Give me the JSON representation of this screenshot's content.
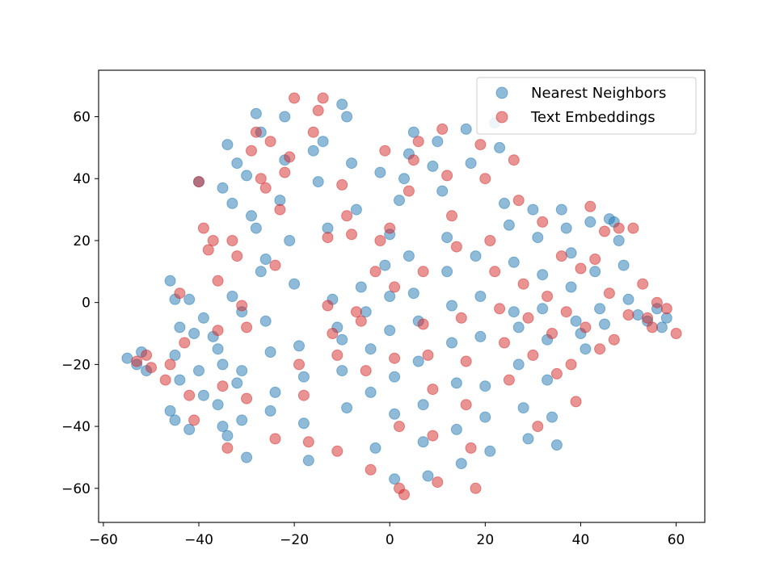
{
  "chart_data": {
    "type": "scatter",
    "title": "",
    "xlabel": "",
    "ylabel": "",
    "xlim": [
      -61,
      66
    ],
    "ylim": [
      -71,
      75
    ],
    "xticks": [
      -60,
      -40,
      -20,
      0,
      20,
      40,
      60
    ],
    "yticks": [
      -60,
      -40,
      -20,
      0,
      20,
      40,
      60
    ],
    "xtick_labels": [
      "−60",
      "−40",
      "−20",
      "0",
      "20",
      "40",
      "60"
    ],
    "ytick_labels": [
      "−60",
      "−40",
      "−20",
      "0",
      "20",
      "40",
      "60"
    ],
    "grid": false,
    "legend_position": "top-right",
    "series": [
      {
        "name": "Nearest Neighbors",
        "color": "#1f77b4",
        "alpha": 0.5,
        "points": [
          [
            -55,
            -18
          ],
          [
            -53,
            -20
          ],
          [
            -52,
            -16
          ],
          [
            -51,
            -22
          ],
          [
            -46,
            7
          ],
          [
            -45,
            1
          ],
          [
            -44,
            -8
          ],
          [
            -45,
            -17
          ],
          [
            -44,
            -25
          ],
          [
            -46,
            -35
          ],
          [
            -45,
            -38
          ],
          [
            -42,
            1
          ],
          [
            -41,
            -10
          ],
          [
            -40,
            -22
          ],
          [
            -39,
            -30
          ],
          [
            -42,
            -41
          ],
          [
            -40,
            39
          ],
          [
            -39,
            -5
          ],
          [
            -37,
            -11
          ],
          [
            -36,
            -15
          ],
          [
            -35,
            -20
          ],
          [
            -36,
            -33
          ],
          [
            -35,
            -40
          ],
          [
            -34,
            -43
          ],
          [
            -34,
            51
          ],
          [
            -35,
            37
          ],
          [
            -33,
            32
          ],
          [
            -32,
            45
          ],
          [
            -33,
            2
          ],
          [
            -31,
            -3
          ],
          [
            -31,
            -22
          ],
          [
            -32,
            -26
          ],
          [
            -31,
            -38
          ],
          [
            -30,
            -50
          ],
          [
            -30,
            41
          ],
          [
            -29,
            28
          ],
          [
            -28,
            24
          ],
          [
            -28,
            61
          ],
          [
            -27,
            55
          ],
          [
            -27,
            10
          ],
          [
            -26,
            14
          ],
          [
            -26,
            -6
          ],
          [
            -25,
            -16
          ],
          [
            -24,
            -29
          ],
          [
            -25,
            -35
          ],
          [
            -23,
            33
          ],
          [
            -22,
            46
          ],
          [
            -22,
            60
          ],
          [
            -21,
            20
          ],
          [
            -20,
            6
          ],
          [
            -19,
            -14
          ],
          [
            -18,
            -24
          ],
          [
            -18,
            -39
          ],
          [
            -17,
            -51
          ],
          [
            -16,
            49
          ],
          [
            -15,
            39
          ],
          [
            -14,
            52
          ],
          [
            -13,
            24
          ],
          [
            -12,
            1
          ],
          [
            -11,
            -8
          ],
          [
            -10,
            -12
          ],
          [
            -10,
            -22
          ],
          [
            -9,
            -34
          ],
          [
            -9,
            60
          ],
          [
            -10,
            64
          ],
          [
            -8,
            45
          ],
          [
            -7,
            30
          ],
          [
            -6,
            5
          ],
          [
            -5,
            -3
          ],
          [
            -4,
            -15
          ],
          [
            -4,
            -29
          ],
          [
            -3,
            -47
          ],
          [
            -2,
            42
          ],
          [
            -1,
            12
          ],
          [
            0,
            22
          ],
          [
            0,
            2
          ],
          [
            0,
            -9
          ],
          [
            1,
            -24
          ],
          [
            1,
            -36
          ],
          [
            1,
            -57
          ],
          [
            2,
            33
          ],
          [
            3,
            40
          ],
          [
            4,
            48
          ],
          [
            5,
            55
          ],
          [
            4,
            15
          ],
          [
            5,
            3
          ],
          [
            6,
            -6
          ],
          [
            6,
            -19
          ],
          [
            7,
            -33
          ],
          [
            7,
            -45
          ],
          [
            8,
            -56
          ],
          [
            9,
            44
          ],
          [
            10,
            52
          ],
          [
            11,
            36
          ],
          [
            12,
            21
          ],
          [
            12,
            10
          ],
          [
            13,
            -1
          ],
          [
            13,
            -13
          ],
          [
            14,
            -26
          ],
          [
            14,
            -41
          ],
          [
            15,
            -52
          ],
          [
            16,
            56
          ],
          [
            17,
            45
          ],
          [
            18,
            15
          ],
          [
            19,
            2
          ],
          [
            19,
            -11
          ],
          [
            20,
            -27
          ],
          [
            20,
            -37
          ],
          [
            21,
            -48
          ],
          [
            22,
            58
          ],
          [
            23,
            50
          ],
          [
            24,
            32
          ],
          [
            25,
            25
          ],
          [
            26,
            13
          ],
          [
            26,
            -3
          ],
          [
            27,
            -8
          ],
          [
            27,
            -20
          ],
          [
            28,
            -34
          ],
          [
            29,
            -44
          ],
          [
            30,
            30
          ],
          [
            31,
            21
          ],
          [
            32,
            9
          ],
          [
            32,
            -2
          ],
          [
            33,
            -12
          ],
          [
            33,
            -25
          ],
          [
            34,
            -37
          ],
          [
            35,
            -46
          ],
          [
            36,
            30
          ],
          [
            37,
            24
          ],
          [
            38,
            16
          ],
          [
            38,
            5
          ],
          [
            39,
            -6
          ],
          [
            40,
            -10
          ],
          [
            41,
            -15
          ],
          [
            42,
            26
          ],
          [
            43,
            10
          ],
          [
            44,
            -2
          ],
          [
            45,
            -7
          ],
          [
            46,
            27
          ],
          [
            47,
            26
          ],
          [
            48,
            20
          ],
          [
            49,
            12
          ],
          [
            50,
            1
          ],
          [
            52,
            -4
          ],
          [
            54,
            -6
          ],
          [
            56,
            -2
          ],
          [
            57,
            -8
          ],
          [
            58,
            -5
          ]
        ]
      },
      {
        "name": "Text Embeddings",
        "color": "#d62728",
        "alpha": 0.5,
        "points": [
          [
            -53,
            -19
          ],
          [
            -51,
            -17
          ],
          [
            -50,
            -21
          ],
          [
            -47,
            -25
          ],
          [
            -46,
            -20
          ],
          [
            -44,
            3
          ],
          [
            -43,
            -13
          ],
          [
            -42,
            -30
          ],
          [
            -41,
            -38
          ],
          [
            -40,
            39
          ],
          [
            -39,
            24
          ],
          [
            -38,
            17
          ],
          [
            -37,
            20
          ],
          [
            -36,
            7
          ],
          [
            -36,
            -9
          ],
          [
            -35,
            -27
          ],
          [
            -34,
            -47
          ],
          [
            -33,
            20
          ],
          [
            -32,
            15
          ],
          [
            -31,
            -1
          ],
          [
            -30,
            -8
          ],
          [
            -30,
            -31
          ],
          [
            -29,
            49
          ],
          [
            -28,
            55
          ],
          [
            -27,
            40
          ],
          [
            -26,
            37
          ],
          [
            -25,
            52
          ],
          [
            -24,
            12
          ],
          [
            -24,
            -44
          ],
          [
            -23,
            30
          ],
          [
            -22,
            42
          ],
          [
            -21,
            47
          ],
          [
            -20,
            66
          ],
          [
            -19,
            -20
          ],
          [
            -18,
            -30
          ],
          [
            -17,
            -45
          ],
          [
            -16,
            55
          ],
          [
            -15,
            62
          ],
          [
            -14,
            66
          ],
          [
            -13,
            21
          ],
          [
            -13,
            -1
          ],
          [
            -12,
            -10
          ],
          [
            -11,
            -17
          ],
          [
            -11,
            -48
          ],
          [
            -10,
            38
          ],
          [
            -9,
            28
          ],
          [
            -8,
            22
          ],
          [
            -7,
            -3
          ],
          [
            -6,
            -6
          ],
          [
            -5,
            -22
          ],
          [
            -4,
            -54
          ],
          [
            -3,
            10
          ],
          [
            -2,
            20
          ],
          [
            -1,
            49
          ],
          [
            0,
            24
          ],
          [
            1,
            5
          ],
          [
            1,
            -18
          ],
          [
            2,
            -40
          ],
          [
            2,
            -60
          ],
          [
            3,
            -62
          ],
          [
            4,
            36
          ],
          [
            5,
            46
          ],
          [
            6,
            52
          ],
          [
            7,
            10
          ],
          [
            7,
            -7
          ],
          [
            8,
            -17
          ],
          [
            9,
            -28
          ],
          [
            9,
            -43
          ],
          [
            10,
            -58
          ],
          [
            11,
            56
          ],
          [
            12,
            41
          ],
          [
            13,
            28
          ],
          [
            14,
            18
          ],
          [
            15,
            -5
          ],
          [
            16,
            -19
          ],
          [
            16,
            -33
          ],
          [
            17,
            -47
          ],
          [
            18,
            -60
          ],
          [
            19,
            51
          ],
          [
            20,
            40
          ],
          [
            21,
            20
          ],
          [
            22,
            10
          ],
          [
            23,
            -2
          ],
          [
            24,
            -13
          ],
          [
            25,
            -25
          ],
          [
            26,
            46
          ],
          [
            27,
            33
          ],
          [
            28,
            6
          ],
          [
            29,
            -5
          ],
          [
            30,
            -17
          ],
          [
            31,
            -40
          ],
          [
            32,
            26
          ],
          [
            33,
            2
          ],
          [
            34,
            -10
          ],
          [
            35,
            -23
          ],
          [
            36,
            15
          ],
          [
            37,
            -3
          ],
          [
            38,
            -20
          ],
          [
            39,
            -32
          ],
          [
            40,
            11
          ],
          [
            41,
            -8
          ],
          [
            42,
            31
          ],
          [
            43,
            14
          ],
          [
            44,
            -15
          ],
          [
            45,
            23
          ],
          [
            46,
            3
          ],
          [
            47,
            -12
          ],
          [
            48,
            24
          ],
          [
            50,
            -4
          ],
          [
            51,
            24
          ],
          [
            53,
            6
          ],
          [
            54,
            -5
          ],
          [
            55,
            -8
          ],
          [
            56,
            0
          ],
          [
            58,
            -2
          ],
          [
            60,
            -10
          ]
        ]
      }
    ]
  }
}
